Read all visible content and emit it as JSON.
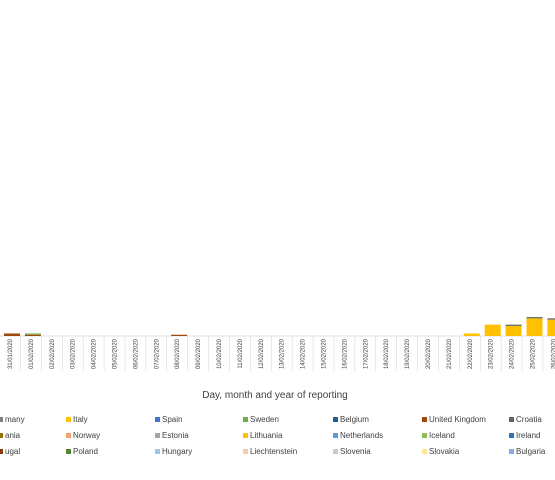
{
  "chart_data": {
    "type": "bar",
    "stacked": true,
    "xlabel": "Day, month and year of reporting",
    "ylabel": "",
    "grid": false,
    "legend_position": "bottom",
    "categories": [
      "31/01/2020",
      "01/02/2020",
      "02/02/2020",
      "03/02/2020",
      "04/02/2020",
      "05/02/2020",
      "06/02/2020",
      "07/02/2020",
      "08/02/2020",
      "09/02/2020",
      "10/02/2020",
      "11/02/2020",
      "12/02/2020",
      "13/02/2020",
      "14/02/2020",
      "15/02/2020",
      "16/02/2020",
      "17/02/2020",
      "18/02/2020",
      "19/02/2020",
      "20/02/2020",
      "21/02/2020",
      "22/02/2020",
      "23/02/2020",
      "24/02/2020",
      "25/02/2020",
      "26/02/2020"
    ],
    "ylim": [
      0,
      260
    ],
    "legend": [
      {
        "name": "many",
        "color": "#7f7f7f"
      },
      {
        "name": "Italy",
        "color": "#ffc000"
      },
      {
        "name": "Spain",
        "color": "#4472c4"
      },
      {
        "name": "Sweden",
        "color": "#70ad47"
      },
      {
        "name": "Belgium",
        "color": "#255e91"
      },
      {
        "name": "United Kingdom",
        "color": "#9e480e"
      },
      {
        "name": "Croatia",
        "color": "#636363"
      },
      {
        "name": "ania",
        "color": "#997300"
      },
      {
        "name": "Norway",
        "color": "#f4a16b"
      },
      {
        "name": "Estonia",
        "color": "#a5a5a5"
      },
      {
        "name": "Lithuania",
        "color": "#ffc000"
      },
      {
        "name": "Netherlands",
        "color": "#5b9bd5"
      },
      {
        "name": "Iceland",
        "color": "#8fbc5a"
      },
      {
        "name": "Ireland",
        "color": "#2e75b6"
      },
      {
        "name": "ugal",
        "color": "#843c0c"
      },
      {
        "name": "Poland",
        "color": "#548235"
      },
      {
        "name": "Hungary",
        "color": "#9dc3e6"
      },
      {
        "name": "Liechtenstein",
        "color": "#f8cbad"
      },
      {
        "name": "Slovenia",
        "color": "#c9c9c9"
      },
      {
        "name": "Slovakia",
        "color": "#ffe699"
      },
      {
        "name": "Bulgaria",
        "color": "#8faadc"
      }
    ],
    "series": [
      {
        "name": "Italy",
        "color": "#ffc000",
        "values": [
          0,
          0,
          0,
          0,
          0,
          0,
          0,
          0,
          0,
          0,
          0,
          0,
          0,
          0,
          0,
          0,
          0,
          0,
          0,
          0,
          0,
          0,
          2,
          9,
          8,
          14,
          13
        ]
      },
      {
        "name": "United Kingdom",
        "color": "#9e480e",
        "values": [
          2,
          1,
          0,
          0,
          0,
          0,
          0,
          0,
          1,
          0,
          0,
          0,
          0,
          0,
          0,
          0,
          0,
          0,
          0,
          0,
          0,
          0,
          0,
          0,
          0,
          0,
          0
        ]
      },
      {
        "name": "Sweden",
        "color": "#70ad47",
        "values": [
          0,
          1,
          0,
          0,
          0,
          0,
          0,
          0,
          0,
          0,
          0,
          0,
          0,
          0,
          0,
          0,
          0,
          0,
          0,
          0,
          0,
          0,
          0,
          0,
          0,
          0,
          0
        ]
      },
      {
        "name": "Croatia",
        "color": "#636363",
        "values": [
          0,
          0,
          0,
          0,
          0,
          0,
          0,
          0,
          0,
          0,
          0,
          0,
          0,
          0,
          0,
          0,
          0,
          0,
          0,
          0,
          0,
          0,
          0,
          0,
          1,
          1,
          1
        ]
      }
    ]
  }
}
